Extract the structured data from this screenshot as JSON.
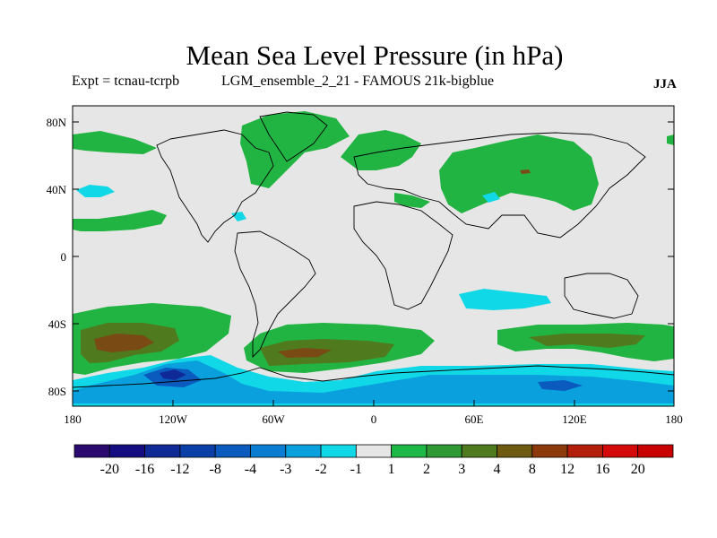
{
  "title": "Mean Sea Level Pressure (in hPa)",
  "subtitle_left": "Expt = tcnau-tcrpb",
  "subtitle_mid": "LGM_ensemble_2_21 - FAMOUS 21k-bigblue",
  "season": "JJA",
  "axes": {
    "lat_ticks": [
      "80N",
      "40N",
      "0",
      "40S",
      "80S"
    ],
    "lon_ticks": [
      "180",
      "120W",
      "60W",
      "0",
      "60E",
      "120E",
      "180"
    ]
  },
  "colorbar": {
    "labels": [
      "-20",
      "-16",
      "-12",
      "-8",
      "-4",
      "-3",
      "-2",
      "-1",
      "1",
      "2",
      "3",
      "4",
      "8",
      "12",
      "16",
      "20"
    ],
    "colors": [
      "#2a0a6e",
      "#140d82",
      "#0f2996",
      "#0a3fa8",
      "#0b5bbf",
      "#0a7dd2",
      "#0aa0de",
      "#10d8e6",
      "#e6e6e6",
      "#1db846",
      "#2f9a33",
      "#4f7a1d",
      "#6f5a12",
      "#8c3a0c",
      "#b21e0a",
      "#d40a0a",
      "#c90000"
    ]
  },
  "map_colors": {
    "neutral": "#e6e6e6",
    "pos1": "#22b442",
    "pos2": "#4f7a1d",
    "pos3": "#7a4a14",
    "neg1": "#10d8e6",
    "neg2": "#0aa0de",
    "neg3": "#0b5bbf",
    "neg4": "#0f2996"
  }
}
